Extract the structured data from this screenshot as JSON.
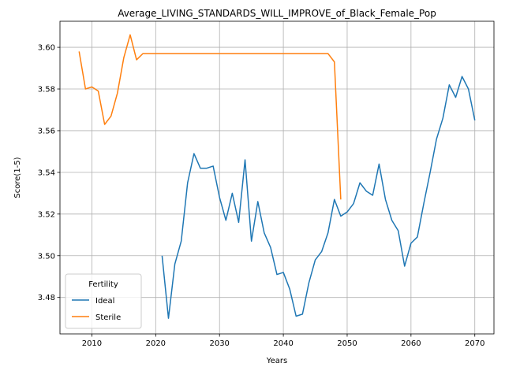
{
  "chart_data": {
    "type": "line",
    "title": "Average_LIVING_STANDARDS_WILL_IMPROVE_of_Black_Female_Pop",
    "xlabel": "Years",
    "ylabel": "Score(1-5)",
    "xlim": [
      2005,
      2073
    ],
    "ylim": [
      3.4625,
      3.6125
    ],
    "xticks": [
      2010,
      2020,
      2030,
      2040,
      2050,
      2060,
      2070
    ],
    "yticks": [
      3.48,
      3.5,
      3.52,
      3.54,
      3.56,
      3.58,
      3.6
    ],
    "ytick_labels": [
      "3.48",
      "3.50",
      "3.52",
      "3.54",
      "3.56",
      "3.58",
      "3.60"
    ],
    "grid": true,
    "legend": {
      "title": "Fertility",
      "placement": "lower-left"
    },
    "series": [
      {
        "name": "Ideal",
        "color": "#1f77b4",
        "x": [
          2021,
          2022,
          2023,
          2024,
          2025,
          2026,
          2027,
          2028,
          2029,
          2030,
          2031,
          2032,
          2033,
          2034,
          2035,
          2036,
          2037,
          2038,
          2039,
          2040,
          2041,
          2042,
          2043,
          2044,
          2045,
          2046,
          2047,
          2048,
          2049,
          2050,
          2051,
          2052,
          2053,
          2054,
          2055,
          2056,
          2057,
          2058,
          2059,
          2060,
          2061,
          2062,
          2063,
          2064,
          2065,
          2066,
          2067,
          2068,
          2069,
          2070
        ],
        "y": [
          3.5,
          3.47,
          3.496,
          3.507,
          3.535,
          3.549,
          3.542,
          3.542,
          3.543,
          3.528,
          3.517,
          3.53,
          3.516,
          3.546,
          3.507,
          3.526,
          3.511,
          3.504,
          3.491,
          3.492,
          3.484,
          3.471,
          3.472,
          3.487,
          3.498,
          3.502,
          3.511,
          3.527,
          3.519,
          3.521,
          3.525,
          3.535,
          3.531,
          3.529,
          3.544,
          3.527,
          3.517,
          3.512,
          3.495,
          3.506,
          3.509,
          3.525,
          3.54,
          3.556,
          3.566,
          3.582,
          3.576,
          3.586,
          3.58,
          3.565
        ]
      },
      {
        "name": "Sterile",
        "color": "#ff7f0e",
        "x": [
          2008,
          2009,
          2010,
          2011,
          2012,
          2013,
          2014,
          2015,
          2016,
          2017,
          2018,
          2019,
          2020,
          2021,
          2022,
          2023,
          2024,
          2025,
          2026,
          2027,
          2028,
          2029,
          2030,
          2031,
          2032,
          2033,
          2034,
          2035,
          2036,
          2037,
          2038,
          2039,
          2040,
          2041,
          2042,
          2043,
          2044,
          2045,
          2046,
          2047,
          2048,
          2049
        ],
        "y": [
          3.598,
          3.58,
          3.581,
          3.579,
          3.563,
          3.567,
          3.578,
          3.595,
          3.606,
          3.594,
          3.597,
          3.597,
          3.597,
          3.597,
          3.597,
          3.597,
          3.597,
          3.597,
          3.597,
          3.597,
          3.597,
          3.597,
          3.597,
          3.597,
          3.597,
          3.597,
          3.597,
          3.597,
          3.597,
          3.597,
          3.597,
          3.597,
          3.597,
          3.597,
          3.597,
          3.597,
          3.597,
          3.597,
          3.597,
          3.597,
          3.593,
          3.527
        ]
      }
    ]
  }
}
